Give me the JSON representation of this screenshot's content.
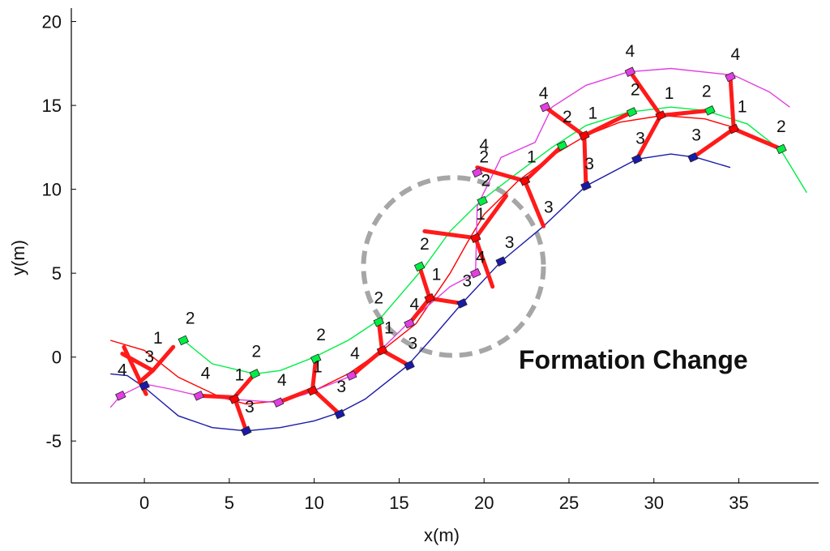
{
  "chart_data": {
    "type": "line",
    "xlabel": "x(m)",
    "ylabel": "y(m)",
    "xlim": [
      -4.3,
      39.7
    ],
    "ylim": [
      -7.5,
      20.8
    ],
    "xticks": [
      0,
      5,
      10,
      15,
      20,
      25,
      30,
      35
    ],
    "yticks": [
      -5,
      0,
      5,
      10,
      15,
      20
    ],
    "annotation": "Formation Change",
    "highlight_circle": {
      "center": [
        18.2,
        5.4
      ],
      "radius_x": 5.3,
      "radius_y": 5.3,
      "color": "#a6a6a6"
    },
    "colors": {
      "agent1": "#ff0000",
      "agent2": "#00ee44",
      "agent3": "#1a1aa8",
      "agent4": "#e23ee2",
      "link": "#ff1a1a"
    },
    "series": [
      {
        "x": [
          -2.0,
          0.0,
          2.0,
          4.5,
          6.0,
          8.0,
          10.0,
          12.0,
          14.0,
          16.0,
          17.0,
          18.0,
          19.0,
          20.0,
          22.0,
          24.0,
          26.0,
          28.0,
          30.5,
          33.0,
          35.0
        ],
        "y": [
          1.0,
          0.4,
          -1.2,
          -2.4,
          -2.8,
          -2.6,
          -2.0,
          -1.0,
          0.4,
          2.0,
          3.5,
          5.0,
          6.8,
          8.5,
          10.5,
          12.0,
          13.2,
          14.0,
          14.4,
          14.2,
          13.6
        ]
      },
      {
        "x": [
          2.3,
          4.0,
          6.5,
          8.0,
          10.0,
          12.0,
          13.8,
          16.5,
          18.0,
          19.8,
          22.0,
          24.0,
          26.0,
          28.5,
          31.0,
          33.0,
          35.5,
          37.5,
          39.0
        ],
        "y": [
          1.0,
          -0.4,
          -1.0,
          -0.8,
          0.0,
          1.0,
          2.2,
          5.4,
          7.5,
          9.3,
          11.0,
          12.5,
          13.8,
          14.6,
          14.9,
          14.7,
          13.9,
          12.3,
          9.8
        ]
      },
      {
        "x": [
          -2.0,
          -1.0,
          0.0,
          2.0,
          4.0,
          6.0,
          8.0,
          10.0,
          11.5,
          13.0,
          15.5,
          17.0,
          18.7,
          21.0,
          23.5,
          26.0,
          29.0,
          31.0,
          32.5,
          34.5
        ],
        "y": [
          -1.0,
          -1.1,
          -1.8,
          -3.5,
          -4.2,
          -4.4,
          -4.2,
          -3.8,
          -3.3,
          -2.5,
          -0.5,
          1.2,
          3.2,
          5.7,
          7.8,
          10.2,
          11.8,
          12.1,
          11.9,
          11.3
        ]
      },
      {
        "x": [
          -2.0,
          -1.4,
          0.0,
          1.5,
          3.2,
          5.0,
          7.8,
          9.5,
          12.5,
          15.5,
          18.0,
          19.5,
          19.6,
          21.0,
          23.0,
          24.0,
          26.0,
          28.5,
          31.0,
          34.7,
          36.8,
          38.0
        ],
        "y": [
          -3.0,
          -2.3,
          -1.6,
          -1.9,
          -2.3,
          -2.5,
          -2.7,
          -2.2,
          -1.0,
          2.0,
          4.2,
          5.0,
          9.0,
          11.9,
          12.8,
          14.9,
          16.2,
          17.0,
          17.2,
          16.8,
          15.8,
          14.9
        ]
      }
    ],
    "agent_labels": [
      {
        "text": "1",
        "x": 0.8,
        "y": 0.8
      },
      {
        "text": "2",
        "x": 2.7,
        "y": 2.0
      },
      {
        "text": "3",
        "x": 0.3,
        "y": -0.3
      },
      {
        "text": "4",
        "x": -1.3,
        "y": -1.1
      },
      {
        "text": "1",
        "x": 5.6,
        "y": -1.4
      },
      {
        "text": "2",
        "x": 6.6,
        "y": 0.0
      },
      {
        "text": "3",
        "x": 6.2,
        "y": -3.3
      },
      {
        "text": "4",
        "x": 3.6,
        "y": -1.3
      },
      {
        "text": "1",
        "x": 10.2,
        "y": -0.9
      },
      {
        "text": "2",
        "x": 10.4,
        "y": 1.0
      },
      {
        "text": "3",
        "x": 11.6,
        "y": -2.1
      },
      {
        "text": "4",
        "x": 8.1,
        "y": -1.7
      },
      {
        "text": "1",
        "x": 14.4,
        "y": 1.4
      },
      {
        "text": "2",
        "x": 13.8,
        "y": 3.2
      },
      {
        "text": "3",
        "x": 15.8,
        "y": 0.5
      },
      {
        "text": "4",
        "x": 12.4,
        "y": -0.1
      },
      {
        "text": "1",
        "x": 17.2,
        "y": 4.6
      },
      {
        "text": "2",
        "x": 16.5,
        "y": 6.4
      },
      {
        "text": "3",
        "x": 19.0,
        "y": 4.2
      },
      {
        "text": "4",
        "x": 15.9,
        "y": 2.8
      },
      {
        "text": "1",
        "x": 19.8,
        "y": 8.2
      },
      {
        "text": "2",
        "x": 20.1,
        "y": 10.2
      },
      {
        "text": "3",
        "x": 21.5,
        "y": 6.5
      },
      {
        "text": "4",
        "x": 19.8,
        "y": 5.6
      },
      {
        "text": "1",
        "x": 22.8,
        "y": 11.6
      },
      {
        "text": "2",
        "x": 20.0,
        "y": 11.6
      },
      {
        "text": "3",
        "x": 23.8,
        "y": 8.6
      },
      {
        "text": "4",
        "x": 20.0,
        "y": 12.3
      },
      {
        "text": "1",
        "x": 26.4,
        "y": 14.2
      },
      {
        "text": "2",
        "x": 24.9,
        "y": 14.0
      },
      {
        "text": "3",
        "x": 26.2,
        "y": 11.2
      },
      {
        "text": "4",
        "x": 23.5,
        "y": 15.4
      },
      {
        "text": "1",
        "x": 30.9,
        "y": 15.4
      },
      {
        "text": "2",
        "x": 28.9,
        "y": 15.6
      },
      {
        "text": "3",
        "x": 29.2,
        "y": 12.7
      },
      {
        "text": "4",
        "x": 28.6,
        "y": 17.9
      },
      {
        "text": "1",
        "x": 35.2,
        "y": 14.6
      },
      {
        "text": "2",
        "x": 33.1,
        "y": 15.5
      },
      {
        "text": "3",
        "x": 32.5,
        "y": 12.9
      },
      {
        "text": "4",
        "x": 34.8,
        "y": 17.7
      },
      {
        "text": "2",
        "x": 37.5,
        "y": 13.4
      }
    ],
    "formation_links": [
      [
        [
          -1.2,
          0.6
        ],
        [
          0.1,
          -2.2
        ]
      ],
      [
        [
          0.5,
          -0.8
        ],
        [
          1.7,
          0.6
        ]
      ],
      [
        [
          0.5,
          -0.8
        ],
        [
          -1.3,
          0.2
        ]
      ],
      [
        [
          0.5,
          -0.8
        ],
        [
          -0.3,
          -1.5
        ]
      ],
      [
        [
          5.3,
          -2.4
        ],
        [
          6.5,
          -1.0
        ]
      ],
      [
        [
          5.3,
          -2.4
        ],
        [
          6.0,
          -4.4
        ]
      ],
      [
        [
          5.3,
          -2.4
        ],
        [
          3.2,
          -2.3
        ]
      ],
      [
        [
          9.9,
          -1.9
        ],
        [
          10.1,
          -0.1
        ]
      ],
      [
        [
          9.9,
          -1.9
        ],
        [
          11.5,
          -3.4
        ]
      ],
      [
        [
          9.9,
          -1.9
        ],
        [
          7.9,
          -2.7
        ]
      ],
      [
        [
          14.0,
          0.4
        ],
        [
          13.8,
          2.1
        ]
      ],
      [
        [
          14.0,
          0.4
        ],
        [
          15.6,
          -0.5
        ]
      ],
      [
        [
          14.0,
          0.4
        ],
        [
          12.2,
          -1.1
        ]
      ],
      [
        [
          16.8,
          3.5
        ],
        [
          16.2,
          5.4
        ]
      ],
      [
        [
          16.8,
          3.5
        ],
        [
          18.7,
          3.2
        ]
      ],
      [
        [
          16.8,
          3.5
        ],
        [
          15.6,
          2.0
        ]
      ],
      [
        [
          19.5,
          7.1
        ],
        [
          16.5,
          7.5
        ]
      ],
      [
        [
          19.5,
          7.1
        ],
        [
          21.3,
          9.6
        ]
      ],
      [
        [
          19.5,
          7.1
        ],
        [
          20.5,
          4.2
        ]
      ],
      [
        [
          22.4,
          10.5
        ],
        [
          19.6,
          11.3
        ]
      ],
      [
        [
          22.4,
          10.5
        ],
        [
          23.5,
          7.8
        ]
      ],
      [
        [
          22.4,
          10.5
        ],
        [
          24.6,
          12.6
        ]
      ],
      [
        [
          25.9,
          13.2
        ],
        [
          23.6,
          14.9
        ]
      ],
      [
        [
          25.9,
          13.2
        ],
        [
          26.0,
          10.2
        ]
      ],
      [
        [
          25.9,
          13.2
        ],
        [
          28.7,
          14.6
        ]
      ],
      [
        [
          30.4,
          14.4
        ],
        [
          28.6,
          17.0
        ]
      ],
      [
        [
          30.4,
          14.4
        ],
        [
          29.0,
          11.8
        ]
      ],
      [
        [
          30.4,
          14.4
        ],
        [
          33.3,
          14.7
        ]
      ],
      [
        [
          34.7,
          13.6
        ],
        [
          34.5,
          16.7
        ]
      ],
      [
        [
          34.7,
          13.6
        ],
        [
          32.3,
          11.9
        ]
      ],
      [
        [
          34.7,
          13.6
        ],
        [
          37.5,
          12.4
        ]
      ]
    ],
    "markers": [
      {
        "agent": 2,
        "x": 2.3,
        "y": 1.0
      },
      {
        "agent": 3,
        "x": 0.0,
        "y": -1.7
      },
      {
        "agent": 4,
        "x": -1.4,
        "y": -2.3
      },
      {
        "agent": 4,
        "x": 3.2,
        "y": -2.3
      },
      {
        "agent": 1,
        "x": 5.3,
        "y": -2.5
      },
      {
        "agent": 2,
        "x": 6.5,
        "y": -1.0
      },
      {
        "agent": 3,
        "x": 6.0,
        "y": -4.4
      },
      {
        "agent": 4,
        "x": 7.9,
        "y": -2.7
      },
      {
        "agent": 1,
        "x": 9.9,
        "y": -2.0
      },
      {
        "agent": 2,
        "x": 10.1,
        "y": -0.1
      },
      {
        "agent": 3,
        "x": 11.5,
        "y": -3.4
      },
      {
        "agent": 4,
        "x": 12.2,
        "y": -1.1
      },
      {
        "agent": 1,
        "x": 14.0,
        "y": 0.4
      },
      {
        "agent": 2,
        "x": 13.8,
        "y": 2.1
      },
      {
        "agent": 3,
        "x": 15.6,
        "y": -0.5
      },
      {
        "agent": 4,
        "x": 15.6,
        "y": 2.0
      },
      {
        "agent": 1,
        "x": 16.8,
        "y": 3.5
      },
      {
        "agent": 2,
        "x": 16.2,
        "y": 5.4
      },
      {
        "agent": 3,
        "x": 18.7,
        "y": 3.2
      },
      {
        "agent": 4,
        "x": 19.5,
        "y": 5.0
      },
      {
        "agent": 1,
        "x": 19.5,
        "y": 7.1
      },
      {
        "agent": 2,
        "x": 19.9,
        "y": 9.3
      },
      {
        "agent": 3,
        "x": 21.0,
        "y": 5.7
      },
      {
        "agent": 4,
        "x": 19.6,
        "y": 11.0
      },
      {
        "agent": 1,
        "x": 22.4,
        "y": 10.5
      },
      {
        "agent": 2,
        "x": 24.6,
        "y": 12.6
      },
      {
        "agent": 3,
        "x": 26.0,
        "y": 10.2
      },
      {
        "agent": 4,
        "x": 23.6,
        "y": 14.9
      },
      {
        "agent": 1,
        "x": 25.9,
        "y": 13.2
      },
      {
        "agent": 2,
        "x": 28.7,
        "y": 14.6
      },
      {
        "agent": 3,
        "x": 29.0,
        "y": 11.8
      },
      {
        "agent": 4,
        "x": 28.6,
        "y": 17.0
      },
      {
        "agent": 1,
        "x": 30.4,
        "y": 14.4
      },
      {
        "agent": 2,
        "x": 33.3,
        "y": 14.7
      },
      {
        "agent": 3,
        "x": 32.3,
        "y": 11.9
      },
      {
        "agent": 4,
        "x": 34.5,
        "y": 16.7
      },
      {
        "agent": 1,
        "x": 34.7,
        "y": 13.6
      },
      {
        "agent": 2,
        "x": 37.5,
        "y": 12.4
      }
    ]
  }
}
